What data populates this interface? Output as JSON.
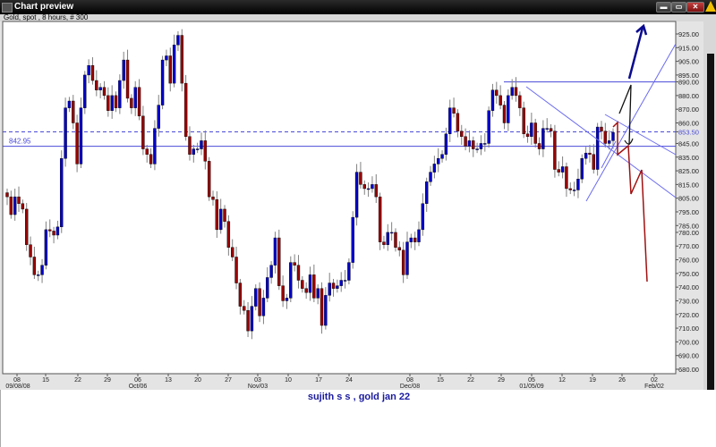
{
  "window": {
    "title": "Chart preview",
    "minimize_label": "▬",
    "restore_label": "▭",
    "close_label": "✕",
    "warning_icon": "warning-triangle-icon"
  },
  "chart_header": "Gold, spot , 8 hours, # 300",
  "caption": "sujith s s , gold jan 22",
  "colors": {
    "up": "#0000cc",
    "down": "#990000",
    "wick": "#808080",
    "lines": "#6b6bf0",
    "hline": "#4a4ad8",
    "annot_red": "#a01010",
    "annot_black": "#111111",
    "annot_navy": "#0a0a90"
  },
  "chart_data": {
    "type": "candlestick",
    "title": "Gold, spot , 8 hours, # 300",
    "ylim": [
      680,
      930
    ],
    "y_tick_labels": [
      "925.00",
      "915.00",
      "905.00",
      "895.00",
      "890.00",
      "880.00",
      "870.00",
      "860.00",
      "853.50",
      "845.00",
      "835.00",
      "825.00",
      "815.00",
      "805.00",
      "795.00",
      "785.00",
      "780.00",
      "770.00",
      "760.00",
      "750.00",
      "740.00",
      "730.00",
      "720.00",
      "710.00",
      "700.00",
      "690.00",
      "680.00"
    ],
    "x_tick_labels": [
      "08",
      "15",
      "22",
      "29",
      "06",
      "13",
      "20",
      "27",
      "03",
      "10",
      "17",
      "24",
      "08",
      "15",
      "22",
      "29",
      "05",
      "12",
      "19",
      "26",
      "02"
    ],
    "x_period_labels": [
      "09/08/08",
      "Oct/06",
      "Nov/03",
      "Dec/08",
      "01/05/09",
      "Feb/02"
    ],
    "closes": [
      806,
      793,
      806,
      801,
      797,
      771,
      762,
      749,
      749,
      756,
      782,
      781,
      778,
      784,
      834,
      871,
      876,
      860,
      830,
      871,
      895,
      902,
      891,
      884,
      886,
      880,
      869,
      880,
      871,
      891,
      906,
      878,
      871,
      886,
      865,
      841,
      837,
      830,
      856,
      873,
      906,
      909,
      889,
      917,
      924,
      889,
      850,
      837,
      841,
      841,
      847,
      832,
      806,
      804,
      782,
      797,
      788,
      769,
      762,
      743,
      726,
      723,
      708,
      726,
      739,
      719,
      732,
      747,
      756,
      776,
      741,
      730,
      732,
      758,
      756,
      745,
      739,
      736,
      749,
      732,
      739,
      712,
      734,
      743,
      739,
      741,
      745,
      745,
      758,
      791,
      824,
      815,
      812,
      812,
      815,
      806,
      773,
      771,
      780,
      780,
      769,
      767,
      749,
      773,
      776,
      773,
      782,
      801,
      817,
      824,
      830,
      834,
      837,
      852,
      871,
      867,
      854,
      850,
      843,
      847,
      841,
      841,
      845,
      845,
      869,
      884,
      880,
      873,
      860,
      880,
      886,
      880,
      871,
      852,
      850,
      860,
      845,
      841,
      856,
      856,
      854,
      826,
      824,
      828,
      812,
      811,
      811,
      819,
      834,
      838,
      837,
      826,
      857,
      854,
      845,
      847,
      853
    ],
    "horizontal_lines": [
      {
        "value": 842.95,
        "label": "842.95",
        "style": "solid"
      },
      {
        "value": 853.5,
        "label": "853.50",
        "style": "dashed"
      },
      {
        "value": 890.0,
        "style": "solid"
      }
    ],
    "grid": false
  }
}
